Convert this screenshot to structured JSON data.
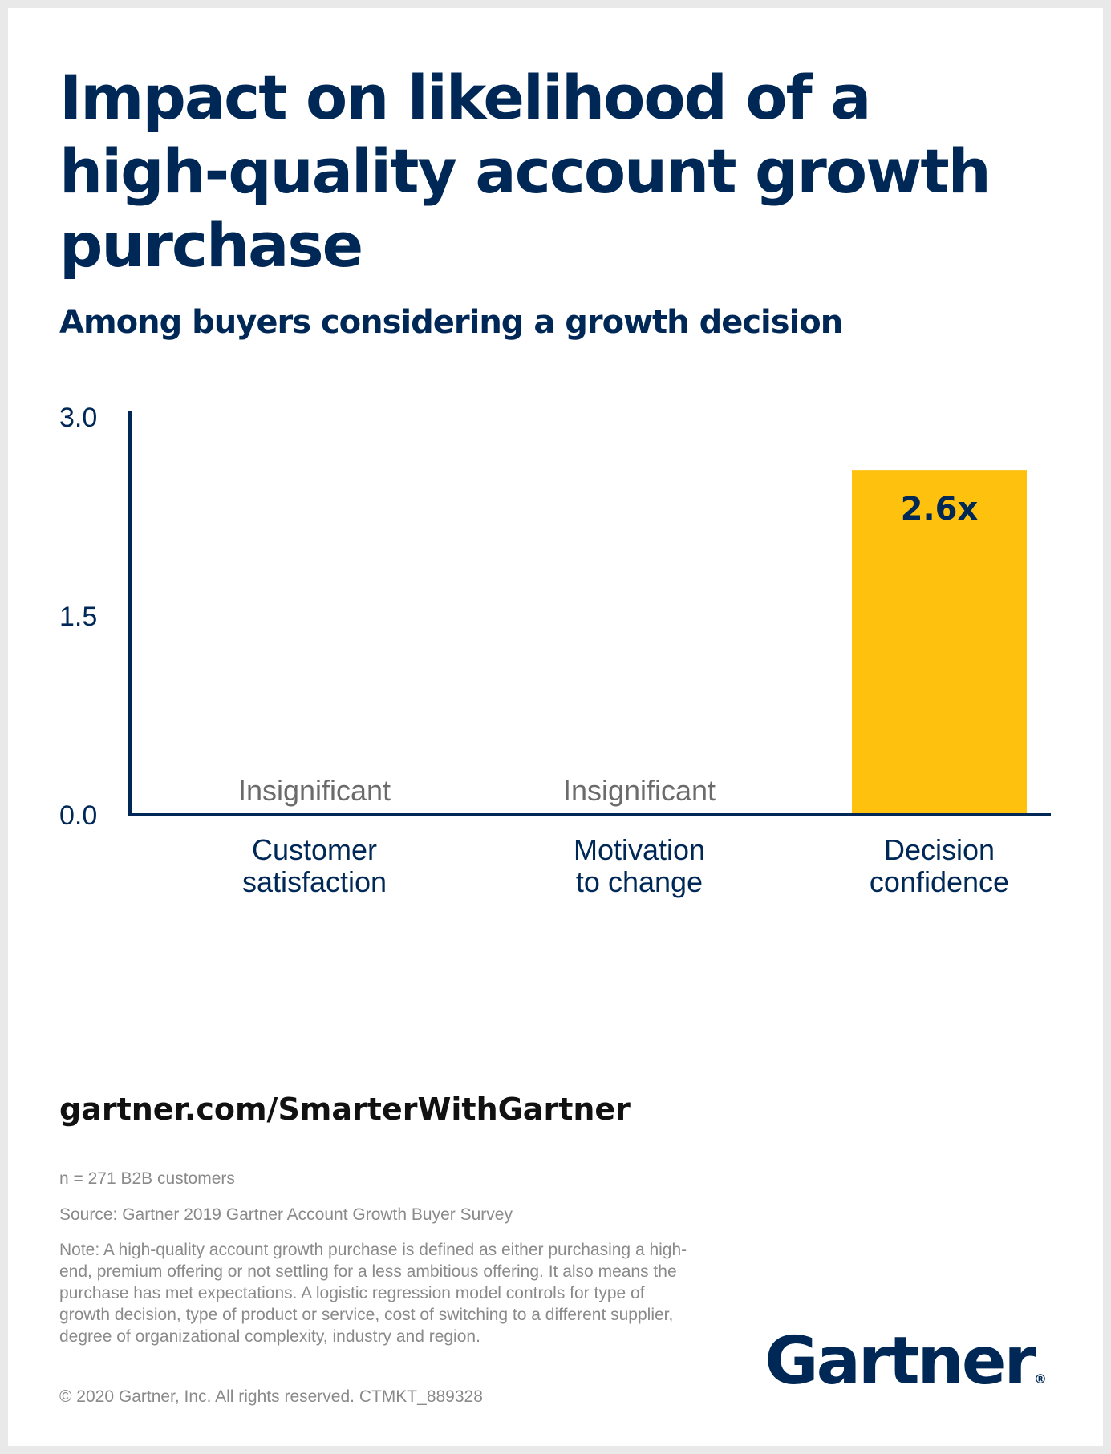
{
  "title": "Impact on likelihood of a high-quality account growth purchase",
  "subtitle": "Among buyers considering a growth decision",
  "chart_data": {
    "type": "bar",
    "categories": [
      "Customer satisfaction",
      "Motivation to change",
      "Decision confidence"
    ],
    "category_lines": [
      [
        "Customer",
        "satisfaction"
      ],
      [
        "Motivation",
        "to change"
      ],
      [
        "Decision",
        "confidence"
      ]
    ],
    "values": [
      null,
      null,
      2.6
    ],
    "data_labels": [
      "Insignificant",
      "Insignificant",
      "2.6x"
    ],
    "yticks": [
      "3.0",
      "1.5",
      "0.0"
    ],
    "ylim": [
      0,
      3.0
    ],
    "grid": false,
    "colors": {
      "bar": "#FDC10E",
      "axis": "#002856",
      "text": "#002856",
      "insignificant": "#6b6b6b"
    }
  },
  "url": "gartner.com/SmarterWithGartner",
  "footnotes": {
    "n": "n = 271 B2B customers",
    "source": "Source: Gartner 2019 Gartner Account Growth Buyer Survey",
    "note": "Note: A high-quality account growth purchase is defined as either purchasing a high-end, premium offering or not settling for a less ambitious offering. It also means the purchase has met expectations. A logistic regression model controls for type of growth decision, type of product or service, cost of switching to a different supplier, degree of organizational complexity, industry and region.",
    "copyright": "© 2020 Gartner, Inc. All rights reserved. CTMKT_889328"
  },
  "logo": {
    "text": "Gartner",
    "mark": "®"
  }
}
